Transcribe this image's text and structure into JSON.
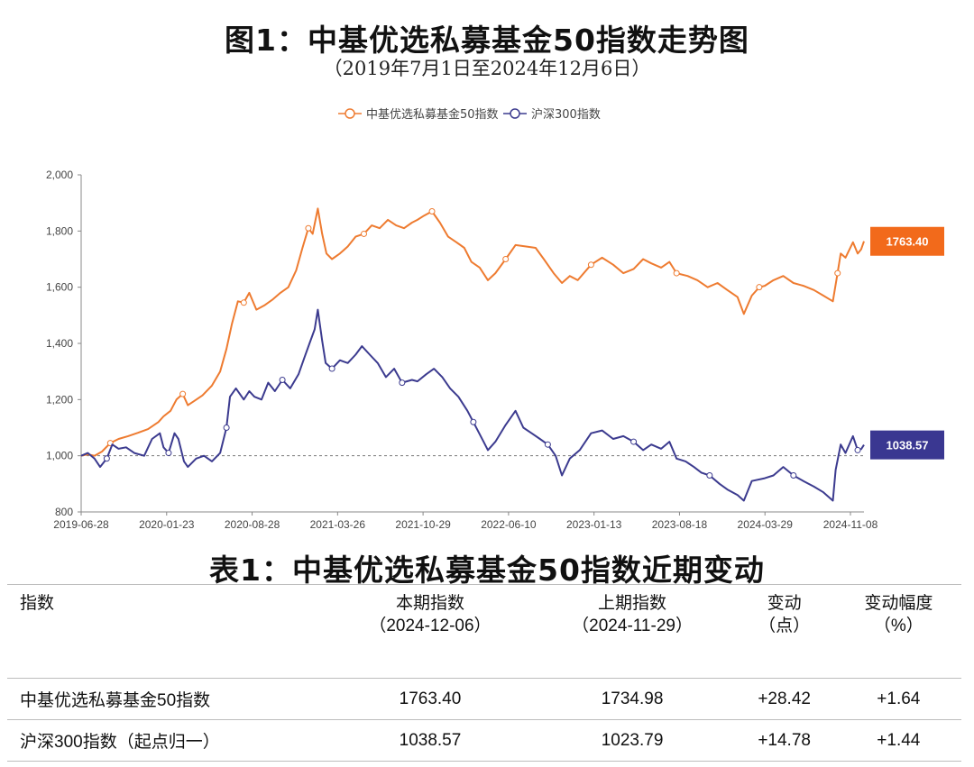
{
  "page": {
    "figure_title": "图1：中基优选私募基金50指数走势图",
    "figure_subtitle": "（2019年7月1日至2024年12月6日）",
    "table_title": "表1：中基优选私募基金50指数近期变动"
  },
  "colors": {
    "series1": "#ee7b30",
    "series2": "#3c3b8f",
    "label1_bg": "#f26a1b",
    "label2_bg": "#3a3791"
  },
  "chart_data": {
    "type": "line",
    "title": "图1：中基优选私募基金50指数走势图",
    "subtitle": "（2019年7月1日至2024年12月6日）",
    "xlabel": "",
    "ylabel": "",
    "x_range": [
      "2019-06-28",
      "2024-12-06"
    ],
    "ylim": [
      800,
      2000
    ],
    "yticks": [
      800,
      1000,
      1200,
      1400,
      1600,
      1800,
      2000
    ],
    "ytick_labels": [
      "800",
      "1,000",
      "1,200",
      "1,400",
      "1,600",
      "1,800",
      "2,000"
    ],
    "xtick_labels": [
      "2019-06-28",
      "2020-01-23",
      "2020-08-28",
      "2021-03-26",
      "2021-10-29",
      "2022-06-10",
      "2023-01-13",
      "2023-08-18",
      "2024-03-29",
      "2024-11-08"
    ],
    "reference_line": 1000,
    "grid": false,
    "legend_position": "top",
    "series": [
      {
        "name": "中基优选私募基金50指数",
        "end_label": "1763.40",
        "points": [
          [
            "2019-06-28",
            1000
          ],
          [
            "2019-07-15",
            1005
          ],
          [
            "2019-08-01",
            1000
          ],
          [
            "2019-08-20",
            1015
          ],
          [
            "2019-09-10",
            1045
          ],
          [
            "2019-10-01",
            1060
          ],
          [
            "2019-10-25",
            1070
          ],
          [
            "2019-11-20",
            1082
          ],
          [
            "2019-12-15",
            1095
          ],
          [
            "2020-01-10",
            1120
          ],
          [
            "2020-01-23",
            1140
          ],
          [
            "2020-02-10",
            1160
          ],
          [
            "2020-02-25",
            1200
          ],
          [
            "2020-03-12",
            1220
          ],
          [
            "2020-03-25",
            1180
          ],
          [
            "2020-04-10",
            1195
          ],
          [
            "2020-05-01",
            1215
          ],
          [
            "2020-05-25",
            1250
          ],
          [
            "2020-06-15",
            1300
          ],
          [
            "2020-07-01",
            1380
          ],
          [
            "2020-07-15",
            1470
          ],
          [
            "2020-07-30",
            1550
          ],
          [
            "2020-08-14",
            1545
          ],
          [
            "2020-08-28",
            1580
          ],
          [
            "2020-09-15",
            1520
          ],
          [
            "2020-10-05",
            1535
          ],
          [
            "2020-10-25",
            1555
          ],
          [
            "2020-11-15",
            1580
          ],
          [
            "2020-12-05",
            1600
          ],
          [
            "2020-12-25",
            1660
          ],
          [
            "2021-01-10",
            1740
          ],
          [
            "2021-01-25",
            1810
          ],
          [
            "2021-02-05",
            1790
          ],
          [
            "2021-02-18",
            1880
          ],
          [
            "2021-03-01",
            1790
          ],
          [
            "2021-03-12",
            1720
          ],
          [
            "2021-03-26",
            1700
          ],
          [
            "2021-04-15",
            1720
          ],
          [
            "2021-05-05",
            1745
          ],
          [
            "2021-05-25",
            1780
          ],
          [
            "2021-06-15",
            1790
          ],
          [
            "2021-07-05",
            1820
          ],
          [
            "2021-07-25",
            1810
          ],
          [
            "2021-08-15",
            1840
          ],
          [
            "2021-09-05",
            1820
          ],
          [
            "2021-09-25",
            1810
          ],
          [
            "2021-10-15",
            1830
          ],
          [
            "2021-10-29",
            1840
          ],
          [
            "2021-11-15",
            1855
          ],
          [
            "2021-12-05",
            1870
          ],
          [
            "2021-12-25",
            1830
          ],
          [
            "2022-01-15",
            1780
          ],
          [
            "2022-02-05",
            1760
          ],
          [
            "2022-02-25",
            1740
          ],
          [
            "2022-03-15",
            1690
          ],
          [
            "2022-04-05",
            1670
          ],
          [
            "2022-04-26",
            1625
          ],
          [
            "2022-05-15",
            1650
          ],
          [
            "2022-06-10",
            1700
          ],
          [
            "2022-07-05",
            1750
          ],
          [
            "2022-08-01",
            1745
          ],
          [
            "2022-08-25",
            1740
          ],
          [
            "2022-09-15",
            1700
          ],
          [
            "2022-10-10",
            1650
          ],
          [
            "2022-10-31",
            1615
          ],
          [
            "2022-11-20",
            1640
          ],
          [
            "2022-12-10",
            1625
          ],
          [
            "2023-01-13",
            1680
          ],
          [
            "2023-02-10",
            1705
          ],
          [
            "2023-03-10",
            1680
          ],
          [
            "2023-04-05",
            1650
          ],
          [
            "2023-05-01",
            1665
          ],
          [
            "2023-05-25",
            1700
          ],
          [
            "2023-06-15",
            1685
          ],
          [
            "2023-07-10",
            1670
          ],
          [
            "2023-07-31",
            1690
          ],
          [
            "2023-08-18",
            1650
          ],
          [
            "2023-09-15",
            1640
          ],
          [
            "2023-10-10",
            1625
          ],
          [
            "2023-11-05",
            1600
          ],
          [
            "2023-11-30",
            1615
          ],
          [
            "2023-12-25",
            1590
          ],
          [
            "2024-01-20",
            1565
          ],
          [
            "2024-02-05",
            1505
          ],
          [
            "2024-02-25",
            1570
          ],
          [
            "2024-03-15",
            1600
          ],
          [
            "2024-03-29",
            1605
          ],
          [
            "2024-04-20",
            1625
          ],
          [
            "2024-05-15",
            1640
          ],
          [
            "2024-06-10",
            1615
          ],
          [
            "2024-07-05",
            1605
          ],
          [
            "2024-08-01",
            1590
          ],
          [
            "2024-08-25",
            1570
          ],
          [
            "2024-09-18",
            1550
          ],
          [
            "2024-09-30",
            1650
          ],
          [
            "2024-10-08",
            1720
          ],
          [
            "2024-10-20",
            1705
          ],
          [
            "2024-11-08",
            1760
          ],
          [
            "2024-11-20",
            1720
          ],
          [
            "2024-11-29",
            1734.98
          ],
          [
            "2024-12-06",
            1763.4
          ]
        ]
      },
      {
        "name": "沪深300指数",
        "end_label": "1038.57",
        "points": [
          [
            "2019-06-28",
            1000
          ],
          [
            "2019-07-15",
            1010
          ],
          [
            "2019-08-01",
            990
          ],
          [
            "2019-08-15",
            960
          ],
          [
            "2019-09-01",
            990
          ],
          [
            "2019-09-15",
            1040
          ],
          [
            "2019-10-01",
            1025
          ],
          [
            "2019-10-20",
            1030
          ],
          [
            "2019-11-10",
            1010
          ],
          [
            "2019-12-05",
            1000
          ],
          [
            "2019-12-25",
            1060
          ],
          [
            "2020-01-14",
            1080
          ],
          [
            "2020-01-23",
            1030
          ],
          [
            "2020-02-05",
            1010
          ],
          [
            "2020-02-20",
            1080
          ],
          [
            "2020-03-01",
            1060
          ],
          [
            "2020-03-15",
            980
          ],
          [
            "2020-03-25",
            960
          ],
          [
            "2020-04-15",
            990
          ],
          [
            "2020-05-05",
            1000
          ],
          [
            "2020-05-25",
            980
          ],
          [
            "2020-06-15",
            1010
          ],
          [
            "2020-07-01",
            1100
          ],
          [
            "2020-07-10",
            1210
          ],
          [
            "2020-07-25",
            1240
          ],
          [
            "2020-08-14",
            1200
          ],
          [
            "2020-08-28",
            1230
          ],
          [
            "2020-09-10",
            1210
          ],
          [
            "2020-09-28",
            1200
          ],
          [
            "2020-10-15",
            1260
          ],
          [
            "2020-11-01",
            1230
          ],
          [
            "2020-11-20",
            1270
          ],
          [
            "2020-12-10",
            1240
          ],
          [
            "2020-12-31",
            1290
          ],
          [
            "2021-01-15",
            1350
          ],
          [
            "2021-01-28",
            1400
          ],
          [
            "2021-02-10",
            1450
          ],
          [
            "2021-02-18",
            1520
          ],
          [
            "2021-03-01",
            1410
          ],
          [
            "2021-03-10",
            1330
          ],
          [
            "2021-03-26",
            1310
          ],
          [
            "2021-04-15",
            1340
          ],
          [
            "2021-05-05",
            1330
          ],
          [
            "2021-05-25",
            1360
          ],
          [
            "2021-06-10",
            1390
          ],
          [
            "2021-06-30",
            1360
          ],
          [
            "2021-07-20",
            1330
          ],
          [
            "2021-08-10",
            1280
          ],
          [
            "2021-08-31",
            1310
          ],
          [
            "2021-09-20",
            1260
          ],
          [
            "2021-10-15",
            1270
          ],
          [
            "2021-10-29",
            1265
          ],
          [
            "2021-11-20",
            1290
          ],
          [
            "2021-12-10",
            1310
          ],
          [
            "2021-12-31",
            1280
          ],
          [
            "2022-01-20",
            1240
          ],
          [
            "2022-02-10",
            1210
          ],
          [
            "2022-03-05",
            1160
          ],
          [
            "2022-03-20",
            1120
          ],
          [
            "2022-04-15",
            1050
          ],
          [
            "2022-04-26",
            1020
          ],
          [
            "2022-05-15",
            1050
          ],
          [
            "2022-06-10",
            1110
          ],
          [
            "2022-07-05",
            1160
          ],
          [
            "2022-07-25",
            1100
          ],
          [
            "2022-08-15",
            1080
          ],
          [
            "2022-09-05",
            1060
          ],
          [
            "2022-09-25",
            1040
          ],
          [
            "2022-10-15",
            1000
          ],
          [
            "2022-10-31",
            930
          ],
          [
            "2022-11-20",
            990
          ],
          [
            "2022-12-15",
            1020
          ],
          [
            "2023-01-13",
            1080
          ],
          [
            "2023-02-10",
            1090
          ],
          [
            "2023-03-10",
            1060
          ],
          [
            "2023-04-05",
            1070
          ],
          [
            "2023-05-01",
            1050
          ],
          [
            "2023-05-25",
            1020
          ],
          [
            "2023-06-15",
            1040
          ],
          [
            "2023-07-10",
            1025
          ],
          [
            "2023-07-31",
            1050
          ],
          [
            "2023-08-18",
            990
          ],
          [
            "2023-09-10",
            980
          ],
          [
            "2023-10-01",
            960
          ],
          [
            "2023-10-20",
            940
          ],
          [
            "2023-11-10",
            930
          ],
          [
            "2023-12-05",
            900
          ],
          [
            "2023-12-25",
            880
          ],
          [
            "2024-01-20",
            860
          ],
          [
            "2024-02-05",
            840
          ],
          [
            "2024-02-25",
            910
          ],
          [
            "2024-03-29",
            920
          ],
          [
            "2024-04-20",
            930
          ],
          [
            "2024-05-15",
            960
          ],
          [
            "2024-06-10",
            930
          ],
          [
            "2024-07-05",
            910
          ],
          [
            "2024-08-01",
            890
          ],
          [
            "2024-08-25",
            870
          ],
          [
            "2024-09-18",
            840
          ],
          [
            "2024-09-25",
            950
          ],
          [
            "2024-10-08",
            1040
          ],
          [
            "2024-10-20",
            1010
          ],
          [
            "2024-11-08",
            1070
          ],
          [
            "2024-11-20",
            1020
          ],
          [
            "2024-11-29",
            1023.79
          ],
          [
            "2024-12-06",
            1038.57
          ]
        ]
      }
    ]
  },
  "table": {
    "headers": [
      {
        "line1": "指数",
        "line2": ""
      },
      {
        "line1": "本期指数",
        "line2": "（2024-12-06）"
      },
      {
        "line1": "上期指数",
        "line2": "（2024-11-29）"
      },
      {
        "line1": "变动",
        "line2": "（点）"
      },
      {
        "line1": "变动幅度",
        "line2": "（%）"
      }
    ],
    "rows": [
      [
        "中基优选私募基金50指数",
        "1763.40",
        "1734.98",
        "+28.42",
        "+1.64"
      ],
      [
        "沪深300指数（起点归一）",
        "1038.57",
        "1023.79",
        "+14.78",
        "+1.44"
      ]
    ]
  }
}
